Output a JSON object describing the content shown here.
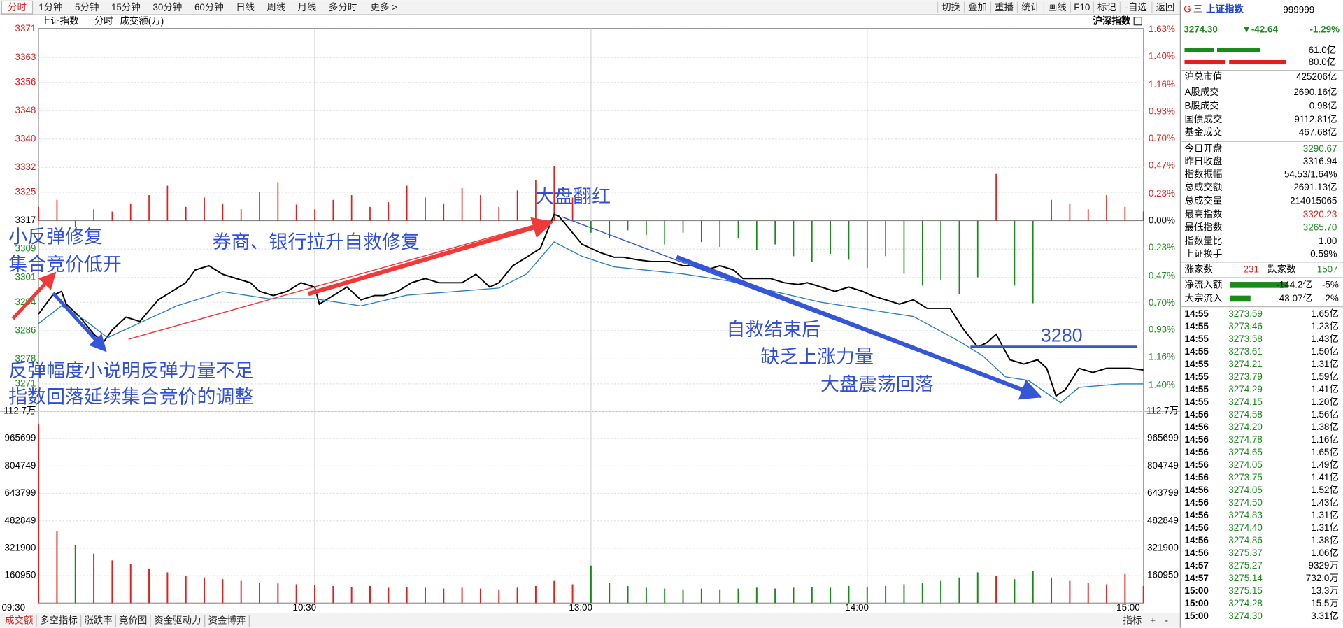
{
  "toolbar": {
    "periods": [
      "分时",
      "1分钟",
      "5分钟",
      "15分钟",
      "30分钟",
      "60分钟",
      "日线",
      "周线",
      "月线",
      "多分时",
      "更多 >"
    ],
    "tools": [
      "切换",
      "叠加",
      "重播",
      "统计",
      "画线",
      "F10",
      "标记",
      "-自选",
      "返回"
    ]
  },
  "panel_title": {
    "name": "上证指数",
    "mode": "分时",
    "indicator": "成交额(万)",
    "market": "沪深指数"
  },
  "chart_data": [
    {
      "type": "line",
      "grid": true,
      "up_color": "#e0201c",
      "down_color": "#1a8a1a",
      "xlim": [
        0,
        240
      ],
      "xticks": [
        {
          "value": 0,
          "label": "09:30"
        },
        {
          "value": 60,
          "label": "10:30"
        },
        {
          "value": 120,
          "label": "13:00"
        },
        {
          "value": 180,
          "label": "14:00"
        },
        {
          "value": 240,
          "label": "15:00"
        }
      ],
      "ylim": [
        3263.3,
        3371.2
      ],
      "yticks": [
        3371,
        3363,
        3356,
        3348,
        3340,
        3332,
        3325,
        3317,
        3309,
        3301,
        3294,
        3286,
        3278,
        3271
      ],
      "y2lim": [
        -1.62,
        1.64
      ],
      "y2ticks": [
        {
          "value": 1.63,
          "label": "1.63%"
        },
        {
          "value": 1.4,
          "label": "1.40%"
        },
        {
          "value": 1.16,
          "label": "1.16%"
        },
        {
          "value": 0.93,
          "label": "0.93%"
        },
        {
          "value": 0.7,
          "label": "0.70%"
        },
        {
          "value": 0.47,
          "label": "0.47%"
        },
        {
          "value": 0.23,
          "label": "0.23%"
        },
        {
          "value": 0,
          "label": "0.00%"
        },
        {
          "value": -0.23,
          "label": "0.23%"
        },
        {
          "value": -0.47,
          "label": "0.47%"
        },
        {
          "value": -0.7,
          "label": "0.70%"
        },
        {
          "value": -0.93,
          "label": "0.93%"
        },
        {
          "value": -1.16,
          "label": "1.16%"
        },
        {
          "value": -1.4,
          "label": "1.40%"
        }
      ],
      "series": [
        {
          "color": "#000000",
          "x": [
            0,
            3,
            5,
            6,
            9,
            12,
            14,
            16,
            19,
            22,
            26,
            29,
            32,
            34,
            37,
            40,
            43,
            46,
            48,
            51,
            54,
            57,
            60,
            61,
            64,
            67,
            70,
            73,
            75,
            78,
            81,
            84,
            87,
            89,
            92,
            95,
            98,
            100,
            103,
            106,
            109,
            112,
            113,
            115,
            118,
            122,
            125,
            127,
            130,
            133,
            137,
            140,
            142,
            145,
            148,
            151,
            153,
            156,
            159,
            162,
            165,
            167,
            170,
            173,
            176,
            179,
            181,
            184,
            187,
            190,
            193,
            195,
            198,
            201,
            204,
            206,
            208,
            211,
            214,
            217,
            219,
            221,
            223,
            226,
            229,
            232,
            234,
            237,
            240
          ],
          "values": [
            3290.7,
            3295.9,
            3297.1,
            3293.5,
            3289.8,
            3285.0,
            3282.6,
            3286.2,
            3289.8,
            3288.6,
            3294.7,
            3297.1,
            3299.5,
            3303.1,
            3304.3,
            3301.9,
            3300.7,
            3299.5,
            3297.1,
            3295.9,
            3297.1,
            3299.5,
            3298.3,
            3293.5,
            3295.9,
            3298.3,
            3294.7,
            3295.9,
            3295.9,
            3297.1,
            3299.5,
            3300.7,
            3299.5,
            3299.5,
            3299.5,
            3301.9,
            3298.3,
            3299.5,
            3304.3,
            3306.7,
            3309.2,
            3318.8,
            3318.3,
            3315.2,
            3310.4,
            3308.0,
            3306.7,
            3306.7,
            3306.0,
            3305.5,
            3305.5,
            3304.3,
            3304.3,
            3303.1,
            3304.3,
            3303.1,
            3300.7,
            3300.7,
            3300.7,
            3299.5,
            3299.0,
            3299.5,
            3298.3,
            3297.1,
            3298.3,
            3297.1,
            3295.9,
            3294.7,
            3293.5,
            3294.7,
            3292.3,
            3292.3,
            3292.3,
            3286.2,
            3281.4,
            3282.6,
            3285.0,
            3277.8,
            3276.6,
            3277.8,
            3275.4,
            3267.6,
            3269.3,
            3275.4,
            3274.2,
            3275.4,
            3275.4,
            3275.4,
            3274.9
          ]
        },
        {
          "color": "#2a7fc4",
          "x": [
            0,
            5,
            10,
            15,
            20,
            30,
            40,
            50,
            60,
            70,
            80,
            90,
            100,
            106,
            112,
            118,
            125,
            140,
            150,
            160,
            170,
            180,
            190,
            200,
            205,
            210,
            215,
            222,
            226,
            235,
            240
          ],
          "values": [
            3288,
            3293,
            3289,
            3284,
            3287,
            3293,
            3297,
            3295,
            3295,
            3293,
            3296,
            3297,
            3298,
            3302,
            3311,
            3307,
            3304,
            3302,
            3300,
            3297,
            3294,
            3292,
            3290,
            3283,
            3279,
            3273,
            3272,
            3265.7,
            3270,
            3271,
            3271
          ]
        }
      ]
    },
    {
      "type": "bar",
      "axis": "y2",
      "up_color": "#e0201c",
      "down_color": "#1a8a1a",
      "x": [
        0,
        4,
        8,
        12,
        16,
        20,
        24,
        28,
        32,
        36,
        40,
        44,
        48,
        52,
        56,
        60,
        64,
        68,
        72,
        76,
        80,
        84,
        88,
        92,
        96,
        100,
        104,
        108,
        112,
        116,
        120,
        124,
        128,
        132,
        136,
        140,
        144,
        148,
        152,
        156,
        160,
        164,
        168,
        172,
        176,
        180,
        184,
        188,
        192,
        196,
        200,
        204,
        208,
        212,
        216,
        220,
        224,
        228,
        232,
        236,
        240
      ],
      "values": [
        0.12,
        0.18,
        -0.05,
        0.1,
        0.08,
        0.15,
        0.22,
        0.3,
        0.12,
        0.2,
        0.15,
        0.1,
        0.25,
        0.33,
        0.14,
        0.1,
        0.18,
        0.22,
        0.12,
        0.16,
        0.3,
        0.2,
        0.15,
        0.28,
        0.22,
        0.12,
        0.26,
        0.35,
        0.47,
        0.2,
        -0.1,
        -0.15,
        -0.08,
        -0.12,
        -0.2,
        -0.1,
        -0.18,
        -0.22,
        -0.15,
        -0.25,
        -0.2,
        -0.3,
        -0.35,
        -0.28,
        -0.33,
        -0.4,
        -0.3,
        -0.45,
        -0.55,
        -0.5,
        -0.62,
        -0.48,
        0.4,
        -0.55,
        -0.7,
        0.18,
        0.15,
        0.1,
        0.22,
        0.12,
        0.08
      ]
    },
    {
      "type": "bar",
      "grid": true,
      "xlim": [
        0,
        240
      ],
      "ylim": [
        0,
        1126650
      ],
      "yticks": [
        {
          "value": 1126650,
          "label": "112.7万"
        },
        965699,
        804749,
        643799,
        482849,
        321900,
        160950
      ],
      "x": [
        0,
        4,
        8,
        12,
        16,
        20,
        24,
        28,
        32,
        36,
        40,
        44,
        48,
        52,
        56,
        60,
        64,
        68,
        72,
        76,
        80,
        84,
        88,
        92,
        96,
        100,
        104,
        108,
        112,
        116,
        120,
        124,
        128,
        132,
        136,
        140,
        144,
        148,
        152,
        156,
        160,
        164,
        168,
        172,
        176,
        180,
        184,
        188,
        192,
        196,
        200,
        204,
        208,
        212,
        216,
        220,
        224,
        228,
        232,
        236,
        240
      ],
      "values": [
        1050000,
        420000,
        340000,
        290000,
        250000,
        230000,
        200000,
        180000,
        160000,
        150000,
        140000,
        130000,
        120000,
        115000,
        110000,
        105000,
        100000,
        95000,
        100000,
        90000,
        95000,
        90000,
        85000,
        90000,
        85000,
        80000,
        90000,
        100000,
        130000,
        110000,
        220000,
        120000,
        100000,
        90000,
        85000,
        80000,
        85000,
        80000,
        85000,
        90000,
        85000,
        90000,
        95000,
        90000,
        100000,
        95000,
        100000,
        110000,
        120000,
        130000,
        150000,
        180000,
        160000,
        140000,
        190000,
        150000,
        130000,
        120000,
        110000,
        170000,
        100000
      ]
    }
  ],
  "annotations": [
    "小反弹修复",
    "集合竞价低开",
    "券商、银行拉升自救修复",
    "大盘翻红",
    "反弹幅度小说明反弹力量不足",
    "指数回落延续集合竞价的调整",
    "自救结束后",
    "缺乏上涨力量",
    "大盘震荡回落",
    "3280"
  ],
  "quote": {
    "mark": "G",
    "menu": "三",
    "name": "上证指数",
    "code": "999999",
    "price": "3274.30",
    "change": "▼-42.64",
    "pct": "-1.29%",
    "buy": "61.0亿",
    "sell": "80.0亿"
  },
  "stats": [
    {
      "label": "沪总市值",
      "value": "425206亿",
      "color": "#000"
    },
    {
      "label": "A股成交",
      "value": "2690.16亿",
      "color": "#000"
    },
    {
      "label": "B股成交",
      "value": "0.98亿",
      "color": "#000"
    },
    {
      "label": "国债成交",
      "value": "9112.81亿",
      "color": "#000"
    },
    {
      "label": "基金成交",
      "value": "467.68亿",
      "color": "#000"
    },
    {
      "label": "今日开盘",
      "value": "3290.67",
      "color": "#1a8a1a"
    },
    {
      "label": "昨日收盘",
      "value": "3316.94",
      "color": "#000"
    },
    {
      "label": "指数振幅",
      "value": "54.53/1.64%",
      "color": "#000"
    },
    {
      "label": "总成交额",
      "value": "2691.13亿",
      "color": "#000"
    },
    {
      "label": "总成交量",
      "value": "214015065",
      "color": "#000"
    },
    {
      "label": "最高指数",
      "value": "3320.23",
      "color": "#e0201c"
    },
    {
      "label": "最低指数",
      "value": "3265.70",
      "color": "#1a8a1a"
    },
    {
      "label": "指数量比",
      "value": "1.00",
      "color": "#000"
    },
    {
      "label": "上证换手",
      "value": "0.59%",
      "color": "#000"
    }
  ],
  "breadth": {
    "up_label": "涨家数",
    "up": "231",
    "down_label": "跌家数",
    "down": "1507"
  },
  "flows": [
    {
      "label": "净流入额",
      "value": "-144.2亿",
      "pct": "-5%"
    },
    {
      "label": "大宗流入",
      "value": "-43.07亿",
      "pct": "-2%"
    }
  ],
  "trades": {
    "price_color": "#1a8a1a",
    "rows": [
      [
        "14:55",
        "3273.59",
        "1.65亿"
      ],
      [
        "14:55",
        "3273.46",
        "1.23亿"
      ],
      [
        "14:55",
        "3273.58",
        "1.43亿"
      ],
      [
        "14:55",
        "3273.61",
        "1.50亿"
      ],
      [
        "14:55",
        "3274.21",
        "1.31亿"
      ],
      [
        "14:55",
        "3273.79",
        "1.59亿"
      ],
      [
        "14:55",
        "3274.29",
        "1.41亿"
      ],
      [
        "14:55",
        "3274.15",
        "1.20亿"
      ],
      [
        "14:56",
        "3274.58",
        "1.56亿"
      ],
      [
        "14:56",
        "3274.20",
        "1.38亿"
      ],
      [
        "14:56",
        "3274.78",
        "1.16亿"
      ],
      [
        "14:56",
        "3274.65",
        "1.65亿"
      ],
      [
        "14:56",
        "3274.05",
        "1.49亿"
      ],
      [
        "14:56",
        "3273.75",
        "1.41亿"
      ],
      [
        "14:56",
        "3274.05",
        "1.52亿"
      ],
      [
        "14:56",
        "3274.50",
        "1.43亿"
      ],
      [
        "14:56",
        "3274.83",
        "1.31亿"
      ],
      [
        "14:56",
        "3274.40",
        "1.31亿"
      ],
      [
        "14:56",
        "3274.86",
        "1.38亿"
      ],
      [
        "14:56",
        "3275.37",
        "1.06亿"
      ],
      [
        "14:57",
        "3275.27",
        "9329万"
      ],
      [
        "14:57",
        "3275.14",
        "732.0万"
      ],
      [
        "15:00",
        "3275.15",
        "13.3万"
      ],
      [
        "15:00",
        "3274.28",
        "15.5万"
      ],
      [
        "15:00",
        "3274.30",
        "3.31亿"
      ]
    ]
  },
  "bottom_tabs": [
    "成交额",
    "多空指标",
    "涨跌率",
    "竞价图",
    "资金驱动力",
    "资金博弈"
  ],
  "bottom_tools": [
    "指标",
    "+",
    "-"
  ]
}
